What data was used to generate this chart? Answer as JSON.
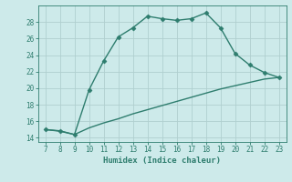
{
  "xlabel": "Humidex (Indice chaleur)",
  "ylabel": "",
  "x_main": [
    7,
    8,
    9,
    10,
    11,
    12,
    13,
    14,
    15,
    16,
    17,
    18,
    19,
    20,
    21,
    22,
    23
  ],
  "y_main": [
    15.0,
    14.8,
    14.4,
    19.8,
    23.3,
    26.2,
    27.3,
    28.7,
    28.4,
    28.2,
    28.4,
    29.1,
    27.3,
    24.2,
    22.8,
    21.9,
    21.3
  ],
  "x_secondary": [
    7,
    8,
    9,
    10,
    11,
    12,
    13,
    14,
    15,
    16,
    17,
    18,
    19,
    20,
    21,
    22,
    23
  ],
  "y_secondary": [
    15.0,
    14.85,
    14.4,
    15.2,
    15.8,
    16.3,
    16.9,
    17.4,
    17.9,
    18.4,
    18.9,
    19.4,
    19.9,
    20.3,
    20.7,
    21.1,
    21.3
  ],
  "line_color": "#2e7d6e",
  "bg_color": "#cdeaea",
  "grid_color": "#b0cfcf",
  "tick_color": "#2e7d6e",
  "label_color": "#2e7d6e",
  "ylim": [
    13.5,
    30
  ],
  "xlim": [
    6.5,
    23.5
  ],
  "yticks": [
    14,
    16,
    18,
    20,
    22,
    24,
    26,
    28
  ],
  "xticks": [
    7,
    8,
    9,
    10,
    11,
    12,
    13,
    14,
    15,
    16,
    17,
    18,
    19,
    20,
    21,
    22,
    23
  ],
  "marker": "D",
  "markersize": 2.5,
  "linewidth": 1.0,
  "tick_labelsize": 5.5,
  "xlabel_fontsize": 6.5
}
